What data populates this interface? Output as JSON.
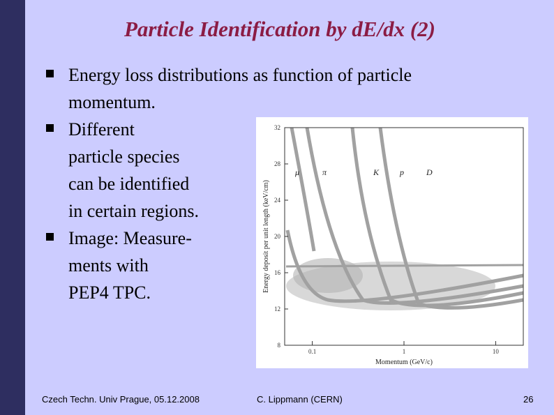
{
  "header": {
    "title": "Particle Identification by dE/dx (2)"
  },
  "bullets": [
    {
      "lines": [
        "Energy loss distributions as function of particle",
        "momentum."
      ]
    },
    {
      "lines": [
        "Different",
        "particle species",
        "can be identified",
        "in certain regions."
      ]
    },
    {
      "lines": [
        "Image: Measure-",
        "ments with",
        "PEP4 TPC."
      ]
    }
  ],
  "figure": {
    "y_label": "Energy deposit per unit length (keV/cm)",
    "x_label": "Momentum (GeV/c)",
    "ylim": [
      8,
      32
    ],
    "yticks": [
      8,
      12,
      16,
      20,
      24,
      28,
      32
    ],
    "xlim": [
      0.05,
      20
    ],
    "xticks": [
      0.1,
      1,
      10
    ],
    "xscale": "log",
    "particles": [
      "μ",
      "π",
      "K",
      "p",
      "D"
    ]
  },
  "footer": {
    "left": "Czech Techn. Univ Prague, 05.12.2008",
    "center": "C. Lippmann (CERN)",
    "page": "26"
  }
}
